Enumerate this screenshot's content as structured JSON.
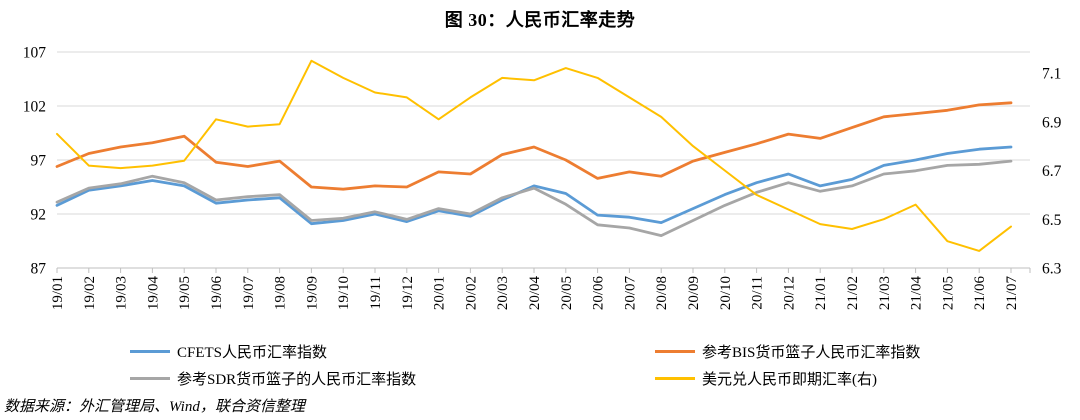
{
  "title": "图 30：人民币汇率走势",
  "source_note": "数据来源：外汇管理局、Wind，联合资信整理",
  "chart_data": {
    "type": "line",
    "title": "图 30：人民币汇率走势",
    "grid": true,
    "legend_position": "bottom",
    "x_labels": [
      "19/01",
      "19/02",
      "19/03",
      "19/04",
      "19/05",
      "19/06",
      "19/07",
      "19/08",
      "19/09",
      "19/10",
      "19/11",
      "19/12",
      "20/01",
      "20/02",
      "20/03",
      "20/04",
      "20/05",
      "20/06",
      "20/07",
      "20/08",
      "20/09",
      "20/10",
      "20/11",
      "20/12",
      "21/01",
      "21/02",
      "21/03",
      "21/04",
      "21/05",
      "21/06",
      "21/07"
    ],
    "left_axis": {
      "ticks": [
        107,
        102,
        97,
        92,
        87
      ],
      "min": 87,
      "max": 107
    },
    "right_axis": {
      "ticks": [
        7.1,
        6.9,
        6.7,
        6.5,
        6.3
      ],
      "min": 6.3,
      "max": 7.1
    },
    "grid_color": "#d9d9d9",
    "axis_color": "#bfbfbf",
    "series": [
      {
        "name": "CFETS人民币汇率指数",
        "color": "#5b9bd5",
        "axis": "left",
        "values": [
          92.8,
          94.2,
          94.6,
          95.1,
          94.6,
          93.0,
          93.3,
          93.5,
          91.1,
          91.4,
          92.0,
          91.3,
          92.3,
          91.8,
          93.3,
          94.6,
          93.9,
          91.9,
          91.7,
          91.2,
          92.5,
          93.8,
          94.9,
          95.7,
          94.6,
          95.2,
          96.5,
          97.0,
          97.6,
          98.0,
          98.2
        ]
      },
      {
        "name": "参考BIS货币篮子人民币汇率指数",
        "color": "#ed7d31",
        "axis": "left",
        "values": [
          96.4,
          97.6,
          98.2,
          98.6,
          99.2,
          96.8,
          96.4,
          96.9,
          94.5,
          94.3,
          94.6,
          94.5,
          95.9,
          95.7,
          97.5,
          98.2,
          97.0,
          95.3,
          95.9,
          95.5,
          96.9,
          97.7,
          98.5,
          99.4,
          99.0,
          100.0,
          101.0,
          101.3,
          101.6,
          102.1,
          102.3
        ]
      },
      {
        "name": "参考SDR货币篮子的人民币汇率指数",
        "color": "#a6a6a6",
        "axis": "left",
        "values": [
          93.1,
          94.4,
          94.8,
          95.5,
          94.9,
          93.3,
          93.6,
          93.8,
          91.4,
          91.6,
          92.2,
          91.5,
          92.5,
          92.0,
          93.5,
          94.4,
          92.9,
          91.0,
          90.7,
          90.0,
          91.4,
          92.8,
          94.0,
          94.9,
          94.1,
          94.6,
          95.7,
          96.0,
          96.5,
          96.6,
          96.9
        ]
      },
      {
        "name": "美元兑人民币即期汇率(右)",
        "color": "#ffc000",
        "axis": "right",
        "values": [
          6.85,
          6.72,
          6.71,
          6.72,
          6.74,
          6.91,
          6.88,
          6.89,
          7.15,
          7.08,
          7.02,
          7.0,
          6.91,
          7.0,
          7.08,
          7.07,
          7.12,
          7.08,
          7.0,
          6.92,
          6.8,
          6.7,
          6.6,
          6.54,
          6.48,
          6.46,
          6.5,
          6.56,
          6.41,
          6.37,
          6.47
        ]
      }
    ]
  }
}
